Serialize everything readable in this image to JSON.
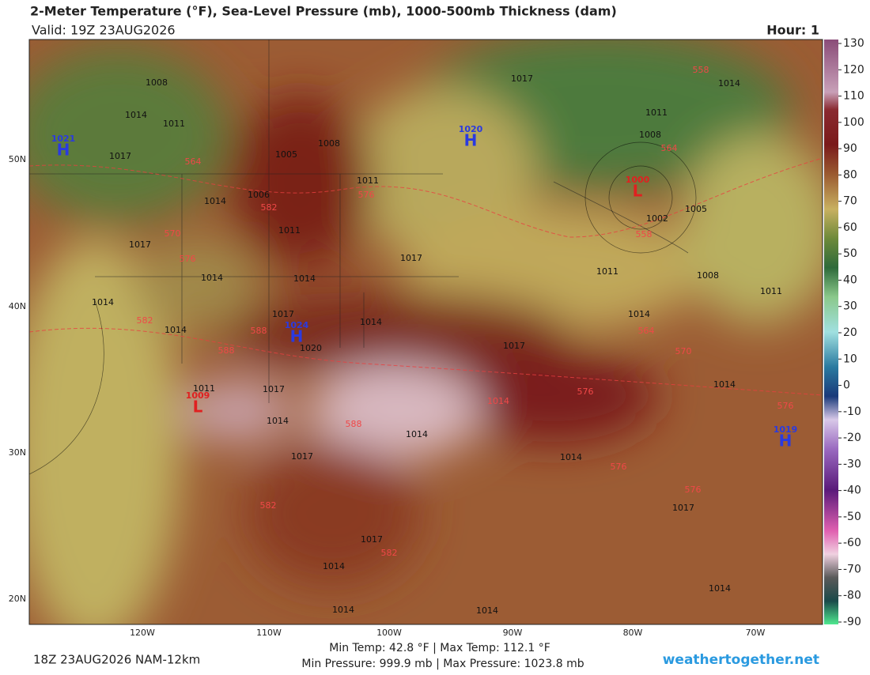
{
  "header": {
    "title": "2-Meter Temperature (°F), Sea-Level Pressure (mb), 1000-500mb Thickness (dam)",
    "valid": "Valid: 19Z 23AUG2026",
    "hour": "Hour: 1"
  },
  "map": {
    "lat_labels": [
      "50N",
      "40N",
      "30N",
      "20N"
    ],
    "lon_labels": [
      "120W",
      "110W",
      "100W",
      "90W",
      "80W",
      "70W"
    ],
    "isobars": [
      "1008",
      "1014",
      "1011",
      "1017",
      "1014",
      "1005",
      "1008",
      "1006",
      "1011",
      "1011",
      "1017",
      "1014",
      "1014",
      "1017",
      "1014",
      "1014",
      "1017",
      "1014",
      "1020",
      "1017",
      "1014",
      "1011",
      "1017",
      "1014",
      "1014",
      "1017",
      "1014",
      "1014",
      "1017",
      "1017",
      "1014",
      "1014",
      "1014",
      "1014",
      "1017",
      "1014",
      "1011",
      "1008",
      "1002",
      "1005",
      "1008",
      "1011",
      "1011"
    ],
    "thickness": [
      "564",
      "570",
      "576",
      "582",
      "576",
      "564",
      "558",
      "564",
      "570",
      "582",
      "588",
      "588",
      "588",
      "576",
      "576",
      "576",
      "576",
      "582",
      "582",
      "558",
      "1014"
    ],
    "highs": [
      {
        "letter": "H",
        "value": "1021"
      },
      {
        "letter": "H",
        "value": "1020"
      },
      {
        "letter": "H",
        "value": "1024"
      },
      {
        "letter": "H",
        "value": "1019"
      }
    ],
    "lows": [
      {
        "letter": "L",
        "value": "1000"
      },
      {
        "letter": "L",
        "value": "1009"
      }
    ]
  },
  "colorbar": {
    "ticks": [
      130,
      120,
      110,
      100,
      90,
      80,
      70,
      60,
      50,
      40,
      30,
      20,
      10,
      0,
      -10,
      -20,
      -30,
      -40,
      -50,
      -60,
      -70,
      -80,
      -90
    ],
    "range": [
      -90,
      130
    ]
  },
  "footer": {
    "run": "18Z 23AUG2026 NAM-12km",
    "temps": "Min Temp:  42.8 °F | Max Temp: 112.1 °F",
    "pressures": "Min Pressure: 999.9 mb | Max Pressure: 1023.8 mb",
    "site": "weathertogether.net"
  }
}
